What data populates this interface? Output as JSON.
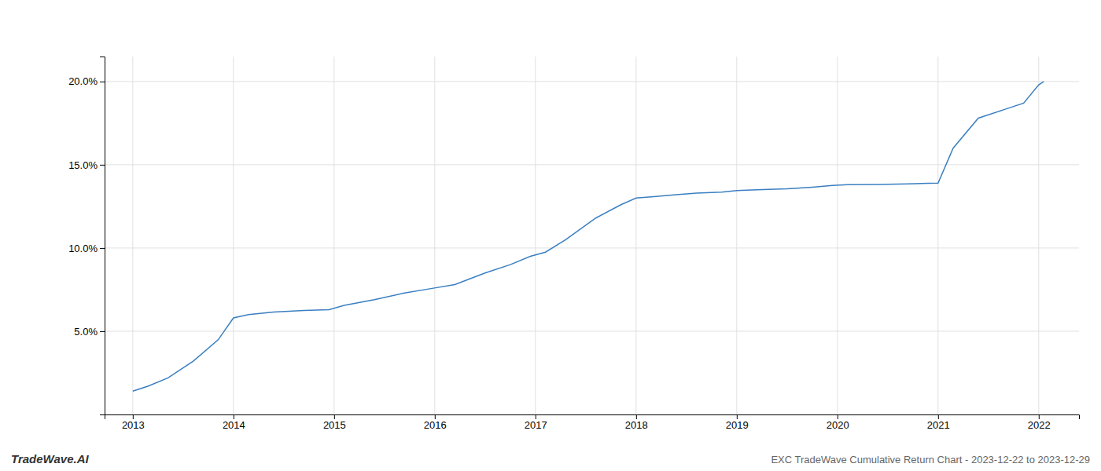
{
  "chart_data": {
    "type": "line",
    "title": "EXC TradeWave Cumulative Return Chart - 2023-12-22 to 2023-12-29",
    "annotations": [
      "TradeWave.AI"
    ],
    "color": "#3a7fc1",
    "x": [
      2013.0,
      2013.15,
      2013.35,
      2013.6,
      2013.85,
      2014.0,
      2014.15,
      2014.4,
      2014.7,
      2014.95,
      2015.1,
      2015.4,
      2015.7,
      2015.95,
      2016.2,
      2016.5,
      2016.75,
      2016.95,
      2017.1,
      2017.3,
      2017.6,
      2017.85,
      2018.0,
      2018.2,
      2018.4,
      2018.6,
      2018.85,
      2019.0,
      2019.2,
      2019.5,
      2019.75,
      2019.95,
      2020.1,
      2020.4,
      2020.7,
      2020.9,
      2021.0,
      2021.15,
      2021.4,
      2021.65,
      2021.85,
      2022.0,
      2022.05
    ],
    "values": [
      1.4,
      1.7,
      2.2,
      3.2,
      4.5,
      5.8,
      6.0,
      6.15,
      6.25,
      6.3,
      6.55,
      6.9,
      7.3,
      7.55,
      7.8,
      8.5,
      9.0,
      9.5,
      9.75,
      10.5,
      11.8,
      12.6,
      13.0,
      13.1,
      13.2,
      13.3,
      13.35,
      13.45,
      13.5,
      13.55,
      13.65,
      13.75,
      13.8,
      13.82,
      13.85,
      13.88,
      13.9,
      16.0,
      17.8,
      18.3,
      18.7,
      19.8,
      20.0
    ],
    "xlim": [
      2012.72,
      2022.4
    ],
    "ylim": [
      0,
      21.5
    ],
    "xticks": [
      2013,
      2014,
      2015,
      2016,
      2017,
      2018,
      2019,
      2020,
      2021,
      2022
    ],
    "yticks": [
      {
        "value": 5.0,
        "label": "5.0%"
      },
      {
        "value": 10.0,
        "label": "10.0%"
      },
      {
        "value": 15.0,
        "label": "15.0%"
      },
      {
        "value": 20.0,
        "label": "20.0%"
      }
    ],
    "grid": true
  }
}
